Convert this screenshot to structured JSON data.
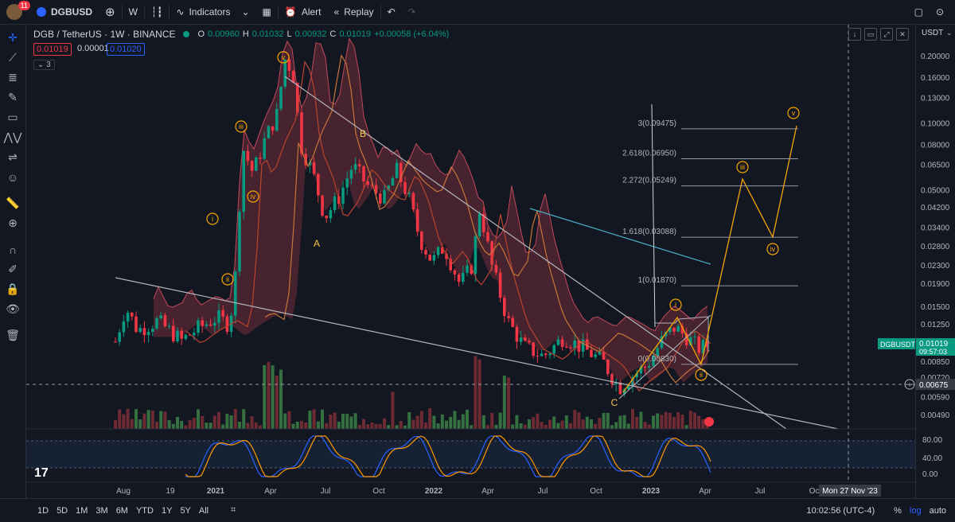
{
  "topbar": {
    "notification_count": "11",
    "symbol": "DGBUSD",
    "interval": "W",
    "indicators_label": "Indicators",
    "alert_label": "Alert",
    "replay_label": "Replay"
  },
  "legend": {
    "title": "DGB / TetherUS · 1W · BINANCE",
    "open_label": "O",
    "open": "0.00960",
    "high_label": "H",
    "high": "0.01032",
    "low_label": "L",
    "low": "0.00932",
    "close_label": "C",
    "close": "0.01019",
    "change": "+0.00058 (+6.04%)",
    "bid": "0.01019",
    "spread": "0.00001",
    "ask": "0.01020",
    "collapse_count": "3"
  },
  "price_axis": {
    "currency": "USDT",
    "ticks": [
      "0.20000",
      "0.16000",
      "0.13000",
      "0.10000",
      "0.08000",
      "0.06500",
      "0.05000",
      "0.04200",
      "0.03400",
      "0.02800",
      "0.02300",
      "0.01900",
      "0.01500",
      "0.01250",
      "0.00850",
      "0.00720",
      "0.00590",
      "0.00490"
    ],
    "current_symbol": "DGBUSDT",
    "current_price": "0.01019",
    "countdown": "09:57:03",
    "crosshair_price": "0.00675",
    "osc_ticks": [
      "80.00",
      "40.00",
      "0.00"
    ]
  },
  "time_axis": {
    "labels": [
      "Aug",
      "19",
      "2021",
      "Apr",
      "Jul",
      "Oct",
      "2022",
      "Apr",
      "Jul",
      "Oct",
      "2023",
      "Apr",
      "Jul",
      "Oc"
    ],
    "crosshair_date": "Mon 27 Nov '23"
  },
  "fib_labels": [
    "3(0.09475)",
    "2.618(0.06950)",
    "2.272(0.05249)",
    "1.618(0.03088)",
    "1(0.01870)",
    "0(0.00830)"
  ],
  "wave_labels": {
    "v_top": "v",
    "iii_left": "iii",
    "iv_left": "iv",
    "i_left": "i",
    "ii_left": "ii",
    "A": "A",
    "B": "B",
    "C": "C",
    "i_right": "i",
    "ii_right": "ii",
    "iii_right": "iii",
    "iv_right": "iv",
    "v_right": "v"
  },
  "bottombar": {
    "ranges": [
      "1D",
      "5D",
      "1M",
      "3M",
      "6M",
      "YTD",
      "1Y",
      "5Y",
      "All"
    ],
    "clock": "10:02:56 (UTC-4)",
    "percent": "%",
    "log": "log",
    "auto": "auto"
  },
  "colors": {
    "background": "#131722",
    "bull": "#089981",
    "bear": "#f23645",
    "cloud": "#5c2a33",
    "accent": "#2962ff",
    "wave": "#f7a600"
  }
}
